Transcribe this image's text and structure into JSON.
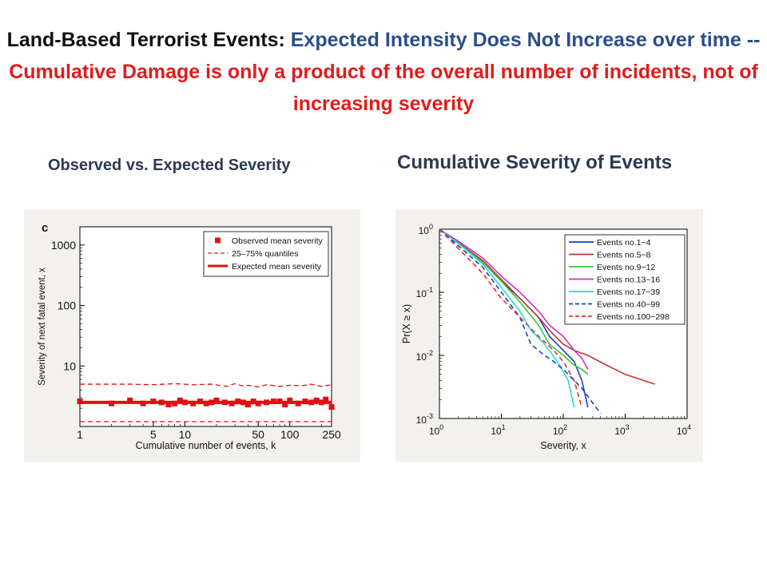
{
  "heading": {
    "part1": "Land-Based Terrorist Events:",
    "part2": "Expected Intensity Does Not Increase over time --",
    "part3": "Cumulative Damage is only a product of the overall number of incidents, not of increasing severity"
  },
  "subtitles": {
    "left": "Observed vs. Expected Severity",
    "right": "Cumulative Severity of Events"
  },
  "colors": {
    "heading_black": "#111111",
    "heading_blue": "#2b4e8a",
    "heading_red": "#e01c1c",
    "subtitle": "#2b3a52"
  },
  "chart_data": [
    {
      "type": "scatter",
      "panel_label": "c",
      "xlabel": "Cumulative number of events, k",
      "ylabel": "Severity of next fatal event, x",
      "xscale": "log",
      "yscale": "log",
      "xlim": [
        1,
        250
      ],
      "ylim": [
        1,
        2000
      ],
      "xticks": [
        1,
        5,
        10,
        50,
        100,
        250
      ],
      "yticks": [
        10,
        100,
        1000
      ],
      "ytick_labels": [
        "10",
        "100",
        "1000"
      ],
      "legend_position": "top-right",
      "series": [
        {
          "name": "Observed mean severity",
          "style": "square-markers",
          "color": "#e01010",
          "x": [
            1,
            2,
            3,
            4,
            5,
            6,
            7,
            8,
            9,
            10,
            12,
            14,
            16,
            18,
            20,
            24,
            28,
            32,
            36,
            40,
            45,
            50,
            60,
            70,
            80,
            90,
            100,
            120,
            140,
            160,
            180,
            200,
            220,
            250
          ],
          "y": [
            2.6,
            2.4,
            2.7,
            2.4,
            2.6,
            2.5,
            2.3,
            2.4,
            2.7,
            2.5,
            2.4,
            2.6,
            2.4,
            2.5,
            2.7,
            2.5,
            2.4,
            2.6,
            2.5,
            2.3,
            2.6,
            2.4,
            2.5,
            2.6,
            2.6,
            2.3,
            2.7,
            2.4,
            2.6,
            2.5,
            2.7,
            2.5,
            2.8,
            2.1
          ]
        },
        {
          "name": "25–75% quantiles",
          "style": "dashed",
          "color": "#e01010",
          "x": [
            1,
            2,
            3,
            5,
            8,
            12,
            18,
            25,
            30,
            35,
            40,
            50,
            60,
            80,
            100,
            130,
            160,
            200,
            250
          ],
          "y_upper": [
            5.0,
            5.0,
            5.0,
            4.9,
            5.1,
            4.9,
            5.0,
            4.6,
            5.1,
            4.7,
            4.8,
            4.5,
            4.9,
            4.6,
            4.8,
            4.7,
            5.0,
            4.6,
            4.9
          ],
          "y_lower": [
            1.2,
            1.2,
            1.2,
            1.2,
            1.2,
            1.2,
            1.2,
            1.2,
            1.2,
            1.2,
            1.2,
            1.2,
            1.2,
            1.2,
            1.2,
            1.2,
            1.2,
            1.2,
            1.2
          ]
        },
        {
          "name": "Expected mean severity",
          "style": "solid-thick",
          "color": "#e01010",
          "x": [
            1,
            250
          ],
          "y": [
            2.5,
            2.5
          ]
        }
      ]
    },
    {
      "type": "line",
      "xlabel": "Severity, x",
      "ylabel": "Pr(X ≥ x)",
      "xscale": "log",
      "yscale": "log",
      "xlim": [
        1,
        10000
      ],
      "ylim": [
        0.001,
        1
      ],
      "xtick_values": [
        1,
        10,
        100,
        1000,
        10000
      ],
      "xtick_exponents": [
        "0",
        "1",
        "2",
        "3",
        "4"
      ],
      "ytick_values": [
        0.001,
        0.01,
        0.1,
        1
      ],
      "ytick_exponents": [
        "-3",
        "-2",
        "-1",
        "0"
      ],
      "tick_base": "10",
      "legend_position": "top-right",
      "series": [
        {
          "name": "Events no.1−4",
          "color": "#1f3fbf",
          "style": "solid",
          "x": [
            1,
            2,
            5,
            10,
            20,
            40,
            60,
            100,
            150,
            200,
            250
          ],
          "y": [
            1,
            0.6,
            0.3,
            0.15,
            0.08,
            0.04,
            0.02,
            0.012,
            0.008,
            0.004,
            0.0015
          ]
        },
        {
          "name": "Events no.5−8",
          "color": "#c0392b",
          "style": "solid",
          "x": [
            1,
            2,
            5,
            10,
            20,
            40,
            60,
            100,
            150,
            250,
            500,
            1000,
            3000
          ],
          "y": [
            1,
            0.62,
            0.32,
            0.16,
            0.08,
            0.04,
            0.025,
            0.015,
            0.012,
            0.01,
            0.007,
            0.005,
            0.0035
          ]
        },
        {
          "name": "Events no.9−12",
          "color": "#33cc33",
          "style": "solid",
          "x": [
            1,
            2,
            5,
            10,
            20,
            40,
            60,
            100,
            150,
            200,
            250
          ],
          "y": [
            1,
            0.6,
            0.3,
            0.15,
            0.07,
            0.03,
            0.015,
            0.01,
            0.007,
            0.006,
            0.005
          ]
        },
        {
          "name": "Events no.13−16",
          "color": "#cc33cc",
          "style": "solid",
          "x": [
            1,
            2,
            5,
            10,
            20,
            40,
            60,
            100,
            150,
            200,
            250
          ],
          "y": [
            1,
            0.65,
            0.35,
            0.18,
            0.1,
            0.05,
            0.03,
            0.02,
            0.012,
            0.009,
            0.006
          ]
        },
        {
          "name": "Events no.17−39",
          "color": "#22dddd",
          "style": "solid",
          "x": [
            1,
            2,
            5,
            10,
            20,
            30,
            50,
            80,
            120,
            150
          ],
          "y": [
            1,
            0.6,
            0.28,
            0.12,
            0.05,
            0.025,
            0.015,
            0.008,
            0.004,
            0.0015
          ]
        },
        {
          "name": "Events no.40−99",
          "color": "#1f3fbf",
          "style": "dashed",
          "x": [
            1,
            2,
            5,
            10,
            20,
            30,
            50,
            70,
            100,
            200,
            400
          ],
          "y": [
            1,
            0.55,
            0.25,
            0.1,
            0.04,
            0.015,
            0.01,
            0.008,
            0.006,
            0.003,
            0.0012
          ]
        },
        {
          "name": "Events no.100−298",
          "color": "#e03030",
          "style": "dashed",
          "x": [
            1,
            2,
            5,
            10,
            20,
            40,
            70,
            100,
            150,
            200
          ],
          "y": [
            1,
            0.5,
            0.2,
            0.08,
            0.04,
            0.02,
            0.012,
            0.008,
            0.004,
            0.0015
          ]
        }
      ]
    }
  ]
}
